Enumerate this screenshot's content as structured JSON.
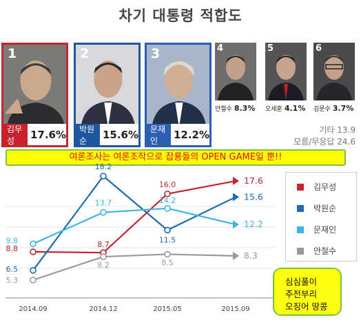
{
  "title": "차기 대통령 적합도",
  "candidates": [
    {
      "rank": "1",
      "name": "김무성",
      "pct": "17.6%",
      "color": "#c8232c"
    },
    {
      "rank": "2",
      "name": "박원순",
      "pct": "15.6%",
      "color": "#1e56a0"
    },
    {
      "rank": "3",
      "name": "문재인",
      "pct": "12.2%",
      "color": "#2d5fb0"
    },
    {
      "rank": "4",
      "name": "안철수",
      "pct": "8.3%"
    },
    {
      "rank": "5",
      "name": "오세훈",
      "pct": "4.1%"
    },
    {
      "rank": "6",
      "name": "김문수",
      "pct": "3.7%"
    }
  ],
  "others": [
    {
      "label": "기타",
      "value": "13.9"
    },
    {
      "label": "모름/무응답",
      "value": "24.6"
    }
  ],
  "banner": "여론조사는 여론조작으로 잡룡들의 OPEN GAME일 뿐!!",
  "note_lines": [
    "심심풀이",
    "주전부리",
    "오징어 땅콩"
  ],
  "chart_data": {
    "type": "line",
    "x": [
      "2014.09",
      "2014.12",
      "2015.05",
      "2015.09"
    ],
    "series": [
      {
        "name": "김무성",
        "color": "#c8232c",
        "values": [
          8.8,
          8.7,
          16.0,
          17.6
        ]
      },
      {
        "name": "박원순",
        "color": "#1a6bb3",
        "values": [
          6.5,
          18.2,
          11.5,
          15.6
        ]
      },
      {
        "name": "문재인",
        "color": "#3fb4e3",
        "values": [
          9.8,
          13.7,
          14.2,
          12.2
        ]
      },
      {
        "name": "안철수",
        "color": "#999999",
        "values": [
          5.3,
          8.2,
          8.5,
          8.3
        ]
      }
    ],
    "legend_position": "right",
    "grid": true
  }
}
